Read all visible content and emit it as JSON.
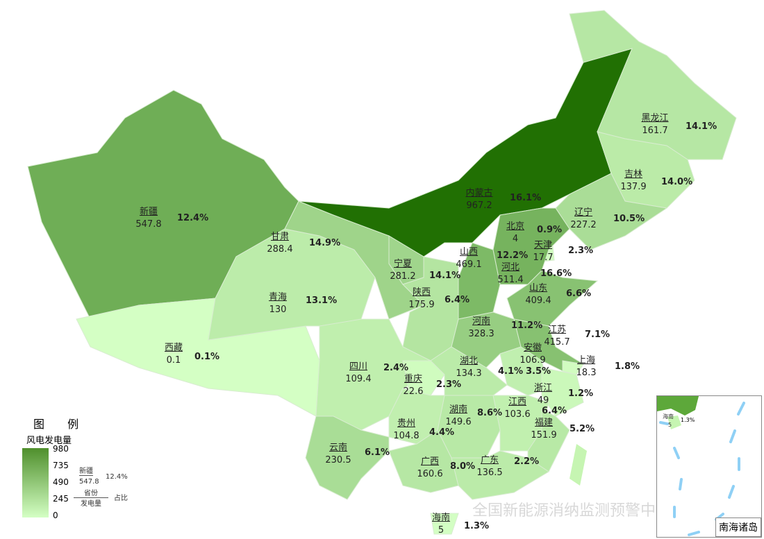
{
  "legend": {
    "title": "图  例",
    "subtitle": "风电发电量",
    "ticks": [
      "980",
      "735",
      "490",
      "245",
      "0"
    ],
    "color_min": "#d4ffc4",
    "color_max": "#1f6e00",
    "range": [
      0,
      980
    ],
    "example": {
      "name": "新疆",
      "value": "547.8",
      "pct": "12.4%",
      "top": "省份",
      "bottom": "发电量",
      "right": "占比"
    }
  },
  "watermark": "全国新能源消纳监测预警中心",
  "inset": {
    "caption": "南海诸岛",
    "hainan_name": "海南",
    "hainan_value": "5",
    "hainan_pct": "1.3%"
  },
  "provinces": [
    {
      "id": "xinjiang",
      "name": "新疆",
      "value": 547.8,
      "pct": "12.4%"
    },
    {
      "id": "xizang",
      "name": "西藏",
      "value": 0.1,
      "pct": "0.1%"
    },
    {
      "id": "qinghai",
      "name": "青海",
      "value": 130,
      "pct": "13.1%"
    },
    {
      "id": "gansu",
      "name": "甘肃",
      "value": 288.4,
      "pct": "14.9%"
    },
    {
      "id": "neimenggu",
      "name": "内蒙古",
      "value": 967.2,
      "pct": "16.1%"
    },
    {
      "id": "heilongjiang",
      "name": "黑龙江",
      "value": 161.7,
      "pct": "14.1%"
    },
    {
      "id": "jilin",
      "name": "吉林",
      "value": 137.9,
      "pct": "14.0%"
    },
    {
      "id": "liaoning",
      "name": "辽宁",
      "value": 227.2,
      "pct": "10.5%"
    },
    {
      "id": "beijing",
      "name": "北京",
      "value": 4,
      "pct": "0.9%"
    },
    {
      "id": "tianjin",
      "name": "天津",
      "value": 17.7,
      "pct": "2.3%"
    },
    {
      "id": "shanxi",
      "name": "山西",
      "value": 469.1,
      "pct": "12.2%"
    },
    {
      "id": "hebei",
      "name": "河北",
      "value": 511.4,
      "pct": "16.6%"
    },
    {
      "id": "shandong",
      "name": "山东",
      "value": 409.4,
      "pct": "6.6%"
    },
    {
      "id": "ningxia",
      "name": "宁夏",
      "value": 281.2,
      "pct": "14.1%"
    },
    {
      "id": "shaanxi",
      "name": "陕西",
      "value": 175.9,
      "pct": "6.4%"
    },
    {
      "id": "henan",
      "name": "河南",
      "value": 328.3,
      "pct": "11.2%"
    },
    {
      "id": "jiangsu",
      "name": "江苏",
      "value": 415.7,
      "pct": "7.1%"
    },
    {
      "id": "anhui",
      "name": "安徽",
      "value": 106.9,
      "pct": "3.5%"
    },
    {
      "id": "shanghai",
      "name": "上海",
      "value": 18.3,
      "pct": "1.8%"
    },
    {
      "id": "hubei",
      "name": "湖北",
      "value": 134.3,
      "pct": "4.1%"
    },
    {
      "id": "sichuan",
      "name": "四川",
      "value": 109.4,
      "pct": "2.4%"
    },
    {
      "id": "chongqing",
      "name": "重庆",
      "value": 22.6,
      "pct": "2.3%"
    },
    {
      "id": "zhejiang",
      "name": "浙江",
      "value": 49,
      "pct": "1.2%"
    },
    {
      "id": "jiangxi",
      "name": "江西",
      "value": 103.6,
      "pct": "6.4%"
    },
    {
      "id": "hunan",
      "name": "湖南",
      "value": 149.6,
      "pct": "8.6%"
    },
    {
      "id": "guizhou",
      "name": "贵州",
      "value": 104.8,
      "pct": "4.4%"
    },
    {
      "id": "fujian",
      "name": "福建",
      "value": 151.9,
      "pct": "5.2%"
    },
    {
      "id": "yunnan",
      "name": "云南",
      "value": 230.5,
      "pct": "6.1%"
    },
    {
      "id": "guangxi",
      "name": "广西",
      "value": 160.6,
      "pct": "8.0%"
    },
    {
      "id": "guangdong",
      "name": "广东",
      "value": 136.5,
      "pct": "2.2%"
    },
    {
      "id": "hainan",
      "name": "海南",
      "value": 5,
      "pct": "1.3%"
    }
  ]
}
